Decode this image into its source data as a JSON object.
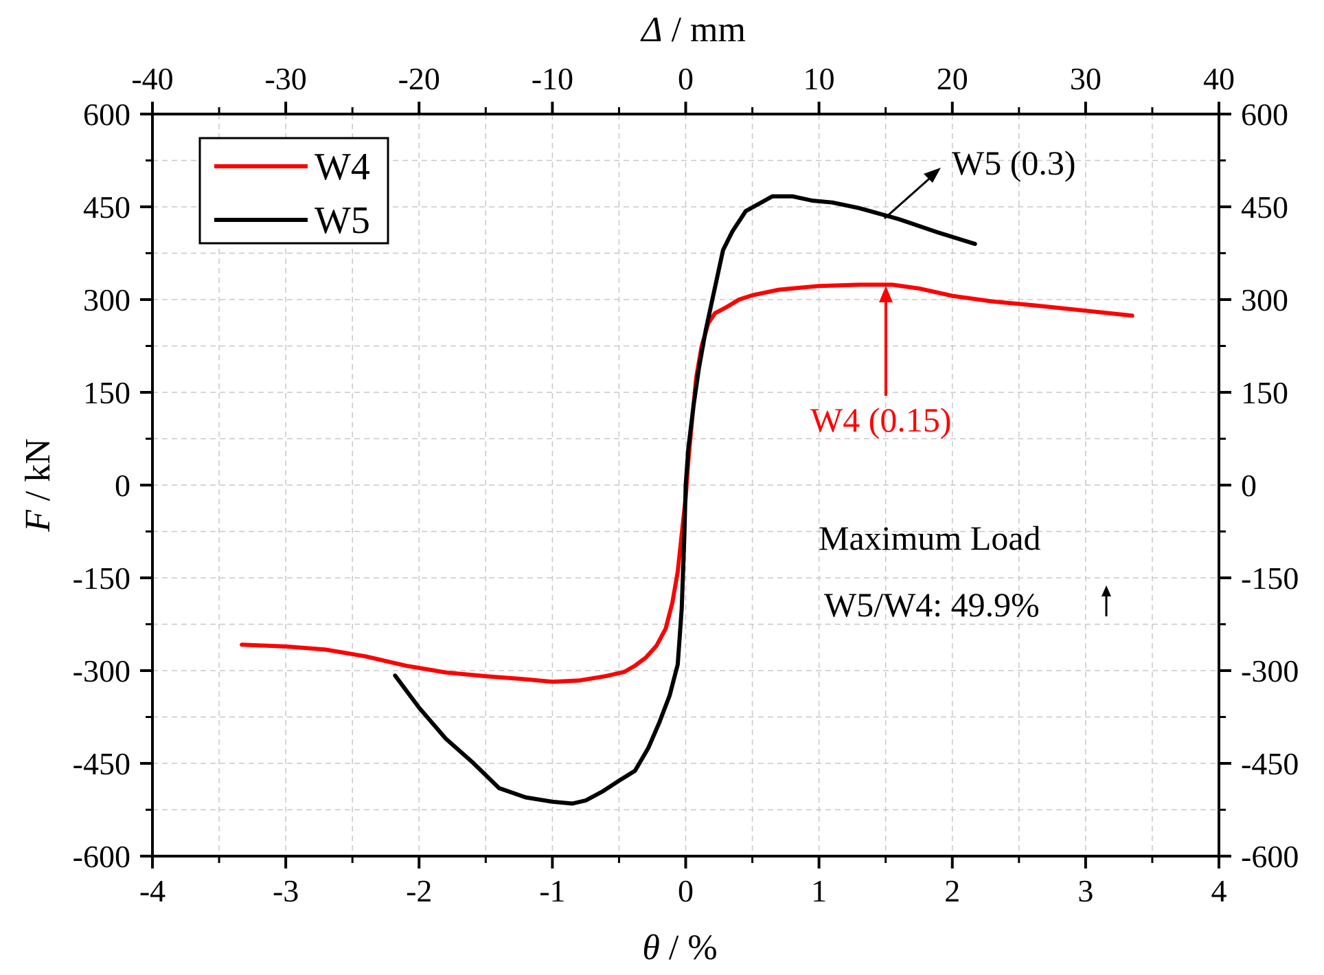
{
  "chart_data": {
    "type": "line",
    "title": "",
    "xlabel": {
      "symbol": "θ",
      "unit": " / %"
    },
    "x2label": {
      "symbol": "Δ",
      "unit": " / mm"
    },
    "ylabel": {
      "symbol": "F",
      "unit": " / kN"
    },
    "xlim": [
      -4,
      4
    ],
    "x2lim": [
      -40,
      40
    ],
    "ylim": [
      -600,
      600
    ],
    "xticks": [
      "-4",
      "-3",
      "-2",
      "-1",
      "0",
      "1",
      "2",
      "3",
      "4"
    ],
    "x2ticks": [
      "-40",
      "-30",
      "-20",
      "-10",
      "0",
      "10",
      "20",
      "30",
      "40"
    ],
    "yticks": [
      "-600",
      "-450",
      "-300",
      "-150",
      "0",
      "150",
      "300",
      "450",
      "600"
    ],
    "grid": true,
    "legend_position": "top-left",
    "series": [
      {
        "name": "W4",
        "color": "#ff0000",
        "points": [
          [
            -3.33,
            -258
          ],
          [
            -3.0,
            -261
          ],
          [
            -2.7,
            -266
          ],
          [
            -2.4,
            -277
          ],
          [
            -2.1,
            -292
          ],
          [
            -1.8,
            -303
          ],
          [
            -1.5,
            -309
          ],
          [
            -1.2,
            -314
          ],
          [
            -1.0,
            -318
          ],
          [
            -0.8,
            -316
          ],
          [
            -0.6,
            -309
          ],
          [
            -0.46,
            -302
          ],
          [
            -0.38,
            -292
          ],
          [
            -0.3,
            -279
          ],
          [
            -0.22,
            -260
          ],
          [
            -0.15,
            -232
          ],
          [
            -0.1,
            -190
          ],
          [
            -0.06,
            -140
          ],
          [
            -0.03,
            -80
          ],
          [
            0.0,
            -20
          ],
          [
            0.02,
            40
          ],
          [
            0.05,
            110
          ],
          [
            0.08,
            175
          ],
          [
            0.12,
            225
          ],
          [
            0.17,
            262
          ],
          [
            0.22,
            278
          ],
          [
            0.3,
            287
          ],
          [
            0.4,
            300
          ],
          [
            0.5,
            307
          ],
          [
            0.7,
            316
          ],
          [
            1.0,
            322
          ],
          [
            1.3,
            324
          ],
          [
            1.55,
            324
          ],
          [
            1.75,
            318
          ],
          [
            2.0,
            306
          ],
          [
            2.3,
            297
          ],
          [
            2.6,
            291
          ],
          [
            3.0,
            282
          ],
          [
            3.35,
            274
          ]
        ]
      },
      {
        "name": "W5",
        "color": "#000000",
        "points": [
          [
            -2.18,
            -308
          ],
          [
            -2.0,
            -360
          ],
          [
            -1.8,
            -410
          ],
          [
            -1.6,
            -448
          ],
          [
            -1.4,
            -490
          ],
          [
            -1.2,
            -505
          ],
          [
            -1.0,
            -512
          ],
          [
            -0.85,
            -515
          ],
          [
            -0.75,
            -510
          ],
          [
            -0.62,
            -495
          ],
          [
            -0.5,
            -478
          ],
          [
            -0.38,
            -462
          ],
          [
            -0.28,
            -425
          ],
          [
            -0.2,
            -385
          ],
          [
            -0.12,
            -340
          ],
          [
            -0.06,
            -290
          ],
          [
            -0.03,
            -200
          ],
          [
            -0.01,
            -80
          ],
          [
            0.0,
            0
          ],
          [
            0.02,
            60
          ],
          [
            0.06,
            130
          ],
          [
            0.1,
            190
          ],
          [
            0.15,
            250
          ],
          [
            0.2,
            300
          ],
          [
            0.28,
            380
          ],
          [
            0.35,
            410
          ],
          [
            0.45,
            443
          ],
          [
            0.55,
            455
          ],
          [
            0.65,
            467
          ],
          [
            0.8,
            467
          ],
          [
            0.95,
            460
          ],
          [
            1.1,
            457
          ],
          [
            1.3,
            448
          ],
          [
            1.6,
            430
          ],
          [
            1.9,
            408
          ],
          [
            2.17,
            390
          ]
        ]
      }
    ],
    "annotations": [
      {
        "text": "W5 (0.3)",
        "color": "#000000"
      },
      {
        "text": "W4 (0.15)",
        "color": "#ff0000"
      },
      {
        "text": "Maximum Load",
        "color": "#000000"
      },
      {
        "text": "W5/W4: 49.9%",
        "color": "#000000"
      }
    ]
  }
}
